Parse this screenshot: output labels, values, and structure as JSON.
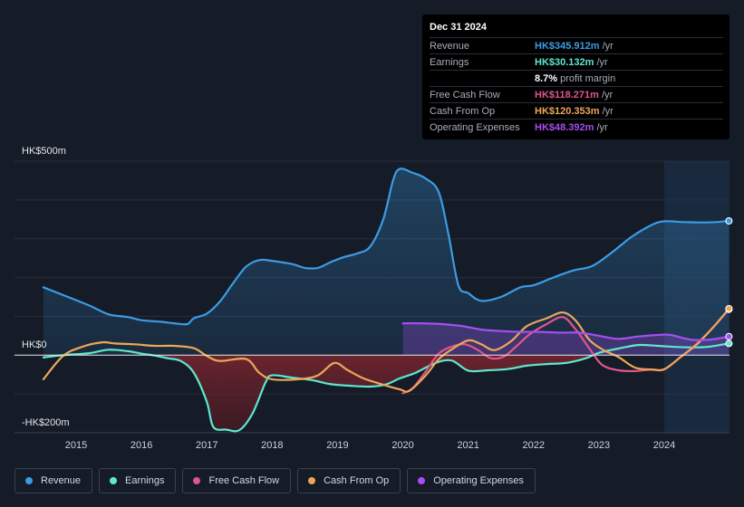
{
  "tooltip": {
    "date": "Dec 31 2024",
    "rows": [
      {
        "label": "Revenue",
        "value": "HK$345.912m",
        "unit": "/yr",
        "color": "#3b9ce4"
      },
      {
        "label": "Earnings",
        "value": "HK$30.132m",
        "unit": "/yr",
        "color": "#5de8cf"
      },
      {
        "label": "",
        "value": "8.7%",
        "unit": "profit margin",
        "color": "#ffffff"
      },
      {
        "label": "Free Cash Flow",
        "value": "HK$118.271m",
        "unit": "/yr",
        "color": "#e0558e"
      },
      {
        "label": "Cash From Op",
        "value": "HK$120.353m",
        "unit": "/yr",
        "color": "#eda659"
      },
      {
        "label": "Operating Expenses",
        "value": "HK$48.392m",
        "unit": "/yr",
        "color": "#a64ef0"
      }
    ]
  },
  "legend": [
    {
      "label": "Revenue",
      "color": "#3b9ce4"
    },
    {
      "label": "Earnings",
      "color": "#5de8cf"
    },
    {
      "label": "Free Cash Flow",
      "color": "#e0558e"
    },
    {
      "label": "Cash From Op",
      "color": "#eda659"
    },
    {
      "label": "Operating Expenses",
      "color": "#a64ef0"
    }
  ],
  "chart_data": {
    "type": "line",
    "title": "",
    "xlabel": "",
    "ylabel": "",
    "y_axis_labels": [
      "HK$500m",
      "HK$0",
      "-HK$200m"
    ],
    "x_tick_labels": [
      "2015",
      "2016",
      "2017",
      "2018",
      "2019",
      "2020",
      "2021",
      "2022",
      "2023",
      "2024"
    ],
    "x_ticks": [
      2015,
      2016,
      2017,
      2018,
      2019,
      2020,
      2021,
      2022,
      2023,
      2024
    ],
    "xlim": [
      2014.5,
      2025.0
    ],
    "ylim": [
      -200,
      500
    ],
    "highlight_from": 2024.0,
    "series": [
      {
        "name": "Revenue",
        "color": "#3b9ce4",
        "fill": true,
        "points": [
          [
            2014.5,
            175
          ],
          [
            2014.8,
            155
          ],
          [
            2015.2,
            128
          ],
          [
            2015.5,
            105
          ],
          [
            2015.8,
            98
          ],
          [
            2016.0,
            90
          ],
          [
            2016.3,
            86
          ],
          [
            2016.5,
            82
          ],
          [
            2016.7,
            80
          ],
          [
            2016.8,
            95
          ],
          [
            2017.0,
            107
          ],
          [
            2017.2,
            138
          ],
          [
            2017.4,
            185
          ],
          [
            2017.6,
            228
          ],
          [
            2017.8,
            245
          ],
          [
            2018.0,
            243
          ],
          [
            2018.3,
            235
          ],
          [
            2018.5,
            225
          ],
          [
            2018.7,
            225
          ],
          [
            2018.9,
            240
          ],
          [
            2019.1,
            253
          ],
          [
            2019.3,
            262
          ],
          [
            2019.5,
            280
          ],
          [
            2019.7,
            350
          ],
          [
            2019.85,
            450
          ],
          [
            2019.95,
            480
          ],
          [
            2020.15,
            470
          ],
          [
            2020.35,
            455
          ],
          [
            2020.55,
            420
          ],
          [
            2020.7,
            310
          ],
          [
            2020.85,
            180
          ],
          [
            2021.0,
            160
          ],
          [
            2021.2,
            140
          ],
          [
            2021.5,
            150
          ],
          [
            2021.8,
            175
          ],
          [
            2022.0,
            180
          ],
          [
            2022.3,
            200
          ],
          [
            2022.6,
            218
          ],
          [
            2022.9,
            230
          ],
          [
            2023.2,
            265
          ],
          [
            2023.5,
            305
          ],
          [
            2023.8,
            335
          ],
          [
            2024.0,
            345
          ],
          [
            2024.3,
            343
          ],
          [
            2024.6,
            342
          ],
          [
            2024.8,
            343
          ],
          [
            2024.99,
            346
          ]
        ]
      },
      {
        "name": "Earnings",
        "color": "#5de8cf",
        "fill": false,
        "points": [
          [
            2014.5,
            -6
          ],
          [
            2014.8,
            0
          ],
          [
            2015.2,
            5
          ],
          [
            2015.5,
            14
          ],
          [
            2015.8,
            10
          ],
          [
            2016.0,
            4
          ],
          [
            2016.2,
            -1
          ],
          [
            2016.4,
            -8
          ],
          [
            2016.6,
            -15
          ],
          [
            2016.8,
            -45
          ],
          [
            2017.0,
            -120
          ],
          [
            2017.1,
            -185
          ],
          [
            2017.3,
            -192
          ],
          [
            2017.5,
            -193
          ],
          [
            2017.7,
            -150
          ],
          [
            2017.9,
            -70
          ],
          [
            2018.0,
            -52
          ],
          [
            2018.3,
            -58
          ],
          [
            2018.6,
            -64
          ],
          [
            2018.9,
            -75
          ],
          [
            2019.2,
            -79
          ],
          [
            2019.5,
            -81
          ],
          [
            2019.75,
            -75
          ],
          [
            2019.95,
            -60
          ],
          [
            2020.2,
            -45
          ],
          [
            2020.5,
            -20
          ],
          [
            2020.75,
            -14
          ],
          [
            2021.0,
            -40
          ],
          [
            2021.3,
            -39
          ],
          [
            2021.6,
            -36
          ],
          [
            2021.9,
            -27
          ],
          [
            2022.2,
            -23
          ],
          [
            2022.5,
            -20
          ],
          [
            2022.8,
            -8
          ],
          [
            2023.0,
            6
          ],
          [
            2023.3,
            17
          ],
          [
            2023.6,
            26
          ],
          [
            2023.9,
            24
          ],
          [
            2024.2,
            21
          ],
          [
            2024.5,
            20
          ],
          [
            2024.7,
            22
          ],
          [
            2024.99,
            30
          ]
        ]
      },
      {
        "name": "Free Cash Flow",
        "color": "#e0558e",
        "fill": false,
        "points": [
          [
            2020.0,
            -98
          ],
          [
            2020.15,
            -85
          ],
          [
            2020.35,
            -42
          ],
          [
            2020.55,
            4
          ],
          [
            2020.75,
            22
          ],
          [
            2020.95,
            28
          ],
          [
            2021.15,
            13
          ],
          [
            2021.35,
            -8
          ],
          [
            2021.55,
            -3
          ],
          [
            2021.75,
            25
          ],
          [
            2021.95,
            55
          ],
          [
            2022.2,
            80
          ],
          [
            2022.45,
            98
          ],
          [
            2022.65,
            65
          ],
          [
            2022.85,
            18
          ],
          [
            2023.05,
            -25
          ],
          [
            2023.3,
            -39
          ],
          [
            2023.55,
            -41
          ],
          [
            2023.8,
            -37
          ],
          [
            2024.0,
            -37
          ],
          [
            2024.25,
            -5
          ],
          [
            2024.5,
            30
          ],
          [
            2024.75,
            72
          ],
          [
            2024.99,
            118
          ]
        ]
      },
      {
        "name": "Cash From Op",
        "color": "#eda659",
        "fill": false,
        "points": [
          [
            2014.5,
            -62
          ],
          [
            2014.8,
            -2
          ],
          [
            2015.1,
            22
          ],
          [
            2015.4,
            33
          ],
          [
            2015.6,
            30
          ],
          [
            2015.9,
            28
          ],
          [
            2016.2,
            24
          ],
          [
            2016.5,
            24
          ],
          [
            2016.8,
            18
          ],
          [
            2017.0,
            -2
          ],
          [
            2017.2,
            -15
          ],
          [
            2017.6,
            -10
          ],
          [
            2017.8,
            -45
          ],
          [
            2018.0,
            -62
          ],
          [
            2018.4,
            -62
          ],
          [
            2018.7,
            -52
          ],
          [
            2018.95,
            -20
          ],
          [
            2019.15,
            -38
          ],
          [
            2019.4,
            -60
          ],
          [
            2019.7,
            -76
          ],
          [
            2019.95,
            -88
          ],
          [
            2020.1,
            -92
          ],
          [
            2020.35,
            -52
          ],
          [
            2020.55,
            -10
          ],
          [
            2020.75,
            15
          ],
          [
            2021.0,
            38
          ],
          [
            2021.2,
            28
          ],
          [
            2021.4,
            13
          ],
          [
            2021.65,
            35
          ],
          [
            2021.9,
            75
          ],
          [
            2022.2,
            95
          ],
          [
            2022.45,
            110
          ],
          [
            2022.65,
            88
          ],
          [
            2022.85,
            40
          ],
          [
            2023.05,
            15
          ],
          [
            2023.3,
            -5
          ],
          [
            2023.55,
            -32
          ],
          [
            2023.8,
            -37
          ],
          [
            2024.0,
            -36
          ],
          [
            2024.25,
            -5
          ],
          [
            2024.5,
            28
          ],
          [
            2024.75,
            72
          ],
          [
            2024.99,
            120
          ]
        ]
      },
      {
        "name": "Operating Expenses",
        "color": "#a64ef0",
        "fill": true,
        "points": [
          [
            2020.0,
            82
          ],
          [
            2020.3,
            82
          ],
          [
            2020.6,
            80
          ],
          [
            2020.9,
            75
          ],
          [
            2021.2,
            66
          ],
          [
            2021.5,
            62
          ],
          [
            2021.8,
            60
          ],
          [
            2022.1,
            60
          ],
          [
            2022.4,
            58
          ],
          [
            2022.7,
            58
          ],
          [
            2023.0,
            50
          ],
          [
            2023.3,
            42
          ],
          [
            2023.6,
            48
          ],
          [
            2023.9,
            52
          ],
          [
            2024.1,
            52
          ],
          [
            2024.4,
            40
          ],
          [
            2024.7,
            40
          ],
          [
            2024.99,
            48
          ]
        ]
      }
    ]
  }
}
